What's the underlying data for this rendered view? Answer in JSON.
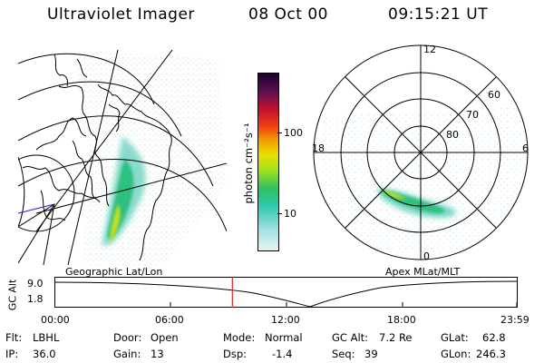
{
  "header": {
    "instrument": "Ultraviolet Imager",
    "date": "08 Oct 00",
    "time": "09:15:21 UT"
  },
  "left_panel": {
    "label": "Geographic Lat/Lon"
  },
  "colorbar": {
    "unit": "photon cm⁻²s⁻¹",
    "ticks": [
      "100",
      "10"
    ]
  },
  "right_panel": {
    "label": "Apex MLat/MLT",
    "mlt_labels": {
      "top": "12",
      "left": "18",
      "right": "6",
      "bottom": "0"
    },
    "lat_labels": [
      "60",
      "70",
      "80"
    ]
  },
  "timeline": {
    "axis_label": "GC Alt",
    "y_ticks": [
      "9.0",
      "1.8"
    ],
    "x_ticks": [
      "00:00",
      "06:00",
      "12:00",
      "18:00",
      "23:59"
    ],
    "current_time_fraction": 0.385
  },
  "info": {
    "flt_label": "Flt:",
    "flt_value": "LBHL",
    "ip_label": "IP:",
    "ip_value": "36.0",
    "door_label": "Door:",
    "door_value": "Open",
    "gain_label": "Gain:",
    "gain_value": "13",
    "mode_label": "Mode:",
    "mode_value": "Normal",
    "dsp_label": "Dsp:",
    "dsp_value": "-1.4",
    "gcalt_label": "GC Alt:",
    "gcalt_value": "7.2 Re",
    "seq_label": "Seq:",
    "seq_value": "39",
    "glat_label": "GLat:",
    "glat_value": "62.8",
    "glon_label": "GLon:",
    "glon_value": "246.3"
  },
  "colors": {
    "auroral_low": "#7fd8c8",
    "auroral_mid": "#2fc080",
    "auroral_high": "#c8e020",
    "time_marker": "#e02020"
  }
}
